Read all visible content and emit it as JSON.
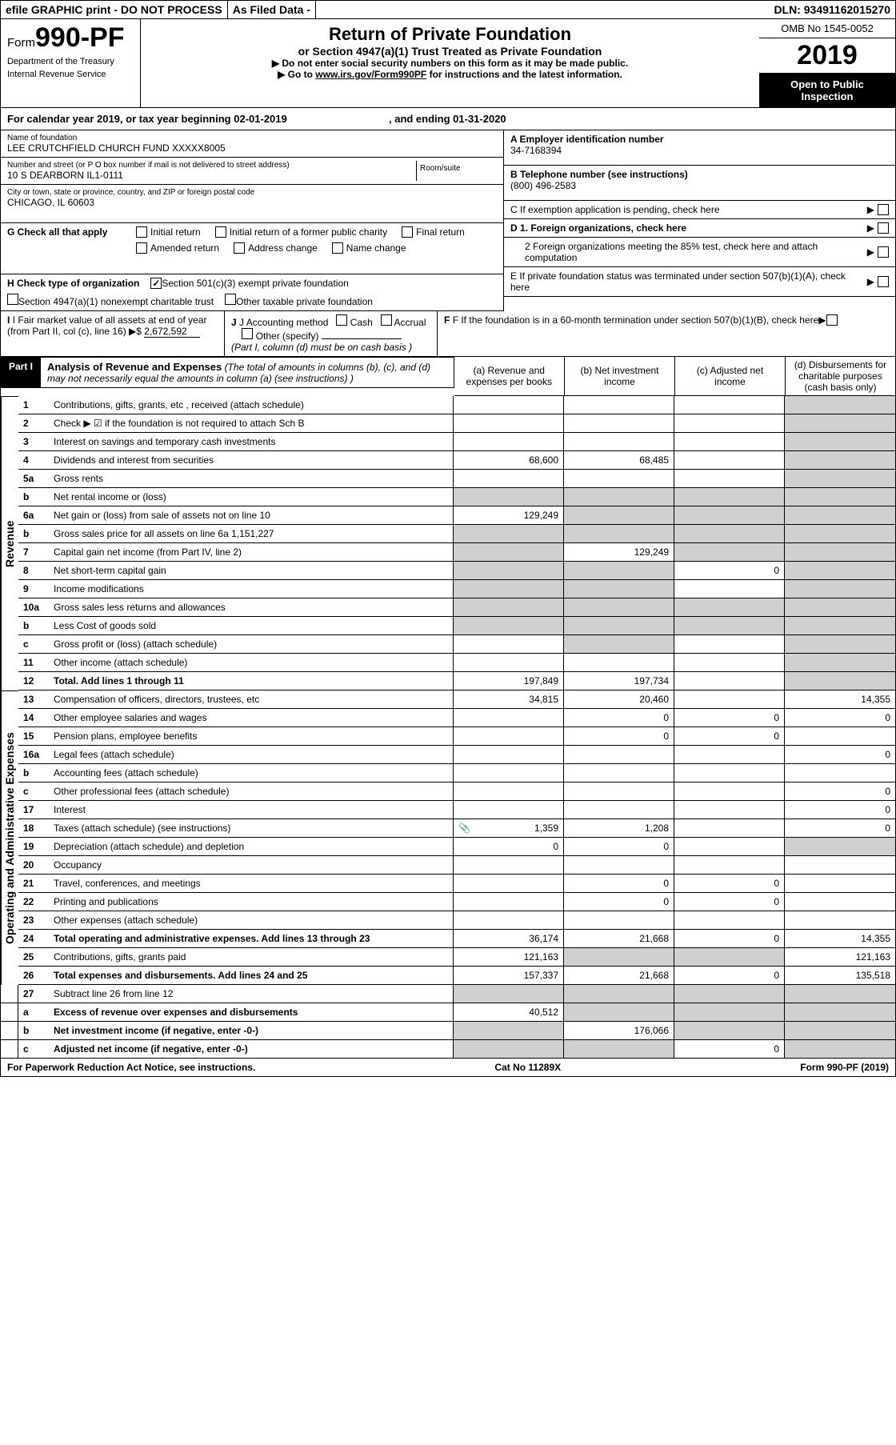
{
  "top": {
    "efile": "efile GRAPHIC print - DO NOT PROCESS",
    "asfiled": "As Filed Data -",
    "dln_lbl": "DLN:",
    "dln": "93491162015270"
  },
  "header": {
    "form_prefix": "Form",
    "form_num": "990-PF",
    "dept": "Department of the Treasury",
    "irs": "Internal Revenue Service",
    "title": "Return of Private Foundation",
    "sub": "or Section 4947(a)(1) Trust Treated as Private Foundation",
    "warn1": "▶ Do not enter social security numbers on this form as it may be made public.",
    "warn2_a": "▶ Go to ",
    "warn2_link": "www.irs.gov/Form990PF",
    "warn2_b": " for instructions and the latest information.",
    "omb": "OMB No 1545-0052",
    "year": "2019",
    "open": "Open to Public Inspection"
  },
  "cal": {
    "label_a": "For calendar year 2019, or tax year beginning ",
    "begin": "02-01-2019",
    "label_b": ", and ending ",
    "end": "01-31-2020"
  },
  "name_block": {
    "lbl": "Name of foundation",
    "val": "LEE CRUTCHFIELD CHURCH FUND XXXXX8005",
    "addr_lbl": "Number and street (or P O  box number if mail is not delivered to street address)",
    "addr": "10 S DEARBORN IL1-0111",
    "room_lbl": "Room/suite",
    "city_lbl": "City or town, state or province, country, and ZIP or foreign postal code",
    "city": "CHICAGO, IL  60603"
  },
  "right_block": {
    "a_lbl": "A Employer identification number",
    "a_val": "34-7168394",
    "b_lbl": "B Telephone number (see instructions)",
    "b_val": "(800) 496-2583",
    "c": "C If exemption application is pending, check here",
    "d1": "D 1. Foreign organizations, check here",
    "d2": "2 Foreign organizations meeting the 85% test, check here and attach computation",
    "e": "E If private foundation status was terminated under section 507(b)(1)(A), check here",
    "f": "F If the foundation is in a 60-month termination under section 507(b)(1)(B), check here"
  },
  "g": {
    "lbl": "G Check all that apply",
    "opts": [
      "Initial return",
      "Initial return of a former public charity",
      "Final return",
      "Amended return",
      "Address change",
      "Name change"
    ]
  },
  "h": {
    "lbl": "H Check type of organization",
    "opt1": "Section 501(c)(3) exempt private foundation",
    "opt2": "Section 4947(a)(1) nonexempt charitable trust",
    "opt3": "Other taxable private foundation",
    "checked": true
  },
  "i": {
    "lbl": "I Fair market value of all assets at end of year (from Part II, col  (c), line 16)",
    "val": "2,672,592"
  },
  "j": {
    "lbl": "J Accounting method",
    "cash": "Cash",
    "accrual": "Accrual",
    "other": "Other (specify)",
    "note": "(Part I, column (d) must be on cash basis )"
  },
  "part1": {
    "tag": "Part I",
    "title": "Analysis of Revenue and Expenses",
    "note": "(The total of amounts in columns (b), (c), and (d) may not necessarily equal the amounts in column (a) (see instructions) )",
    "cols": {
      "a": "(a) Revenue and expenses per books",
      "b": "(b) Net investment income",
      "c": "(c) Adjusted net income",
      "d": "(d) Disbursements for charitable purposes (cash basis only)"
    }
  },
  "revenue_lbl": "Revenue",
  "opex_lbl": "Operating and Administrative Expenses",
  "rows": [
    {
      "n": "1",
      "desc": "Contributions, gifts, grants, etc , received (attach schedule)",
      "a": "",
      "b": "",
      "c": "",
      "d": "",
      "a_shade": false,
      "d_shade": true
    },
    {
      "n": "2",
      "desc": "Check ▶ ☑ if the foundation is not required to attach Sch  B",
      "a": "",
      "b": "",
      "c": "",
      "d": "",
      "d_shade": true
    },
    {
      "n": "3",
      "desc": "Interest on savings and temporary cash investments",
      "a": "",
      "b": "",
      "c": "",
      "d": "",
      "d_shade": true
    },
    {
      "n": "4",
      "desc": "Dividends and interest from securities",
      "a": "68,600",
      "b": "68,485",
      "c": "",
      "d": "",
      "d_shade": true
    },
    {
      "n": "5a",
      "desc": "Gross rents",
      "a": "",
      "b": "",
      "c": "",
      "d": "",
      "d_shade": true
    },
    {
      "n": "b",
      "desc": "Net rental income or (loss)",
      "a": "",
      "b": "",
      "c": "",
      "d": "",
      "a_shade": true,
      "b_shade": true,
      "c_shade": true,
      "d_shade": true
    },
    {
      "n": "6a",
      "desc": "Net gain or (loss) from sale of assets not on line 10",
      "a": "129,249",
      "b": "",
      "c": "",
      "d": "",
      "b_shade": true,
      "c_shade": true,
      "d_shade": true
    },
    {
      "n": "b",
      "desc": "Gross sales price for all assets on line 6a                                                  1,151,227",
      "a": "",
      "b": "",
      "c": "",
      "d": "",
      "a_shade": true,
      "b_shade": true,
      "c_shade": true,
      "d_shade": true
    },
    {
      "n": "7",
      "desc": "Capital gain net income (from Part IV, line 2)",
      "a": "",
      "b": "129,249",
      "c": "",
      "d": "",
      "a_shade": true,
      "c_shade": true,
      "d_shade": true
    },
    {
      "n": "8",
      "desc": "Net short-term capital gain",
      "a": "",
      "b": "",
      "c": "0",
      "d": "",
      "a_shade": true,
      "b_shade": true,
      "d_shade": true
    },
    {
      "n": "9",
      "desc": "Income modifications",
      "a": "",
      "b": "",
      "c": "",
      "d": "",
      "a_shade": true,
      "b_shade": true,
      "d_shade": true
    },
    {
      "n": "10a",
      "desc": "Gross sales less returns and allowances",
      "a": "",
      "b": "",
      "c": "",
      "d": "",
      "a_shade": true,
      "b_shade": true,
      "c_shade": true,
      "d_shade": true
    },
    {
      "n": "b",
      "desc": "Less  Cost of goods sold",
      "a": "",
      "b": "",
      "c": "",
      "d": "",
      "a_shade": true,
      "b_shade": true,
      "c_shade": true,
      "d_shade": true
    },
    {
      "n": "c",
      "desc": "Gross profit or (loss) (attach schedule)",
      "a": "",
      "b": "",
      "c": "",
      "d": "",
      "b_shade": true,
      "d_shade": true
    },
    {
      "n": "11",
      "desc": "Other income (attach schedule)",
      "a": "",
      "b": "",
      "c": "",
      "d": "",
      "d_shade": true
    },
    {
      "n": "12",
      "desc": "Total. Add lines 1 through 11",
      "a": "197,849",
      "b": "197,734",
      "c": "",
      "d": "",
      "d_shade": true,
      "bold": true
    }
  ],
  "exp_rows": [
    {
      "n": "13",
      "desc": "Compensation of officers, directors, trustees, etc",
      "a": "34,815",
      "b": "20,460",
      "c": "",
      "d": "14,355"
    },
    {
      "n": "14",
      "desc": "Other employee salaries and wages",
      "a": "",
      "b": "0",
      "c": "0",
      "d": "0"
    },
    {
      "n": "15",
      "desc": "Pension plans, employee benefits",
      "a": "",
      "b": "0",
      "c": "0",
      "d": ""
    },
    {
      "n": "16a",
      "desc": "Legal fees (attach schedule)",
      "a": "",
      "b": "",
      "c": "",
      "d": "0"
    },
    {
      "n": "b",
      "desc": "Accounting fees (attach schedule)",
      "a": "",
      "b": "",
      "c": "",
      "d": ""
    },
    {
      "n": "c",
      "desc": "Other professional fees (attach schedule)",
      "a": "",
      "b": "",
      "c": "",
      "d": "0"
    },
    {
      "n": "17",
      "desc": "Interest",
      "a": "",
      "b": "",
      "c": "",
      "d": "0"
    },
    {
      "n": "18",
      "desc": "Taxes (attach schedule) (see instructions)",
      "a": "1,359",
      "b": "1,208",
      "c": "",
      "d": "0",
      "icon": true
    },
    {
      "n": "19",
      "desc": "Depreciation (attach schedule) and depletion",
      "a": "0",
      "b": "0",
      "c": "",
      "d": "",
      "d_shade": true
    },
    {
      "n": "20",
      "desc": "Occupancy",
      "a": "",
      "b": "",
      "c": "",
      "d": ""
    },
    {
      "n": "21",
      "desc": "Travel, conferences, and meetings",
      "a": "",
      "b": "0",
      "c": "0",
      "d": ""
    },
    {
      "n": "22",
      "desc": "Printing and publications",
      "a": "",
      "b": "0",
      "c": "0",
      "d": ""
    },
    {
      "n": "23",
      "desc": "Other expenses (attach schedule)",
      "a": "",
      "b": "",
      "c": "",
      "d": ""
    },
    {
      "n": "24",
      "desc": "Total operating and administrative expenses. Add lines 13 through 23",
      "a": "36,174",
      "b": "21,668",
      "c": "0",
      "d": "14,355",
      "bold": true
    },
    {
      "n": "25",
      "desc": "Contributions, gifts, grants paid",
      "a": "121,163",
      "b": "",
      "c": "",
      "d": "121,163",
      "b_shade": true,
      "c_shade": true
    },
    {
      "n": "26",
      "desc": "Total expenses and disbursements. Add lines 24 and 25",
      "a": "157,337",
      "b": "21,668",
      "c": "0",
      "d": "135,518",
      "bold": true
    }
  ],
  "sum_rows": [
    {
      "n": "27",
      "desc": "Subtract line 26 from line 12",
      "a": "",
      "b": "",
      "c": "",
      "d": "",
      "a_shade": true,
      "b_shade": true,
      "c_shade": true,
      "d_shade": true
    },
    {
      "n": "a",
      "desc": "Excess of revenue over expenses and disbursements",
      "a": "40,512",
      "b": "",
      "c": "",
      "d": "",
      "b_shade": true,
      "c_shade": true,
      "d_shade": true,
      "bold": true
    },
    {
      "n": "b",
      "desc": "Net investment income (if negative, enter -0-)",
      "a": "",
      "b": "176,066",
      "c": "",
      "d": "",
      "a_shade": true,
      "c_shade": true,
      "d_shade": true,
      "bold": true
    },
    {
      "n": "c",
      "desc": "Adjusted net income (if negative, enter -0-)",
      "a": "",
      "b": "",
      "c": "0",
      "d": "",
      "a_shade": true,
      "b_shade": true,
      "d_shade": true,
      "bold": true
    }
  ],
  "footer": {
    "left": "For Paperwork Reduction Act Notice, see instructions.",
    "mid": "Cat  No  11289X",
    "right": "Form 990-PF (2019)"
  }
}
